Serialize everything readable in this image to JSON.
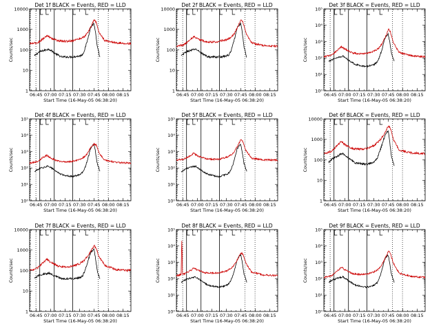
{
  "figure": {
    "x_axis_label": "Start Time (16-May-05 06:38:20)",
    "y_axis_label": "Counts/sec",
    "x_tick_labels": [
      "06:45",
      "07:00",
      "07:15",
      "07:30",
      "07:45",
      "08:00",
      "08:15"
    ],
    "colors": {
      "events": "#000000",
      "lld": "#cc0000",
      "frame": "#000000"
    }
  },
  "chart_data": [
    {
      "type": "line",
      "title": "Det 1f BLACK = Events, RED = LLD",
      "x_unit": "minutes after 06:38:20",
      "xlim": [
        0,
        105
      ],
      "ylim": [
        1,
        10000
      ],
      "ylog": true,
      "y_tick_labels": [
        "1",
        "10",
        "100",
        "1000",
        "10000"
      ],
      "markers": {
        "dotted": [
          0.5,
          6.5,
          71,
          81.5
        ],
        "solid": [
          10.5,
          25.5,
          44.7
        ],
        "flags": [
          11,
          17,
          45,
          58
        ]
      },
      "series": [
        {
          "name": "Events",
          "color": "#000000",
          "x": [
            5,
            10,
            17,
            20,
            28,
            33,
            38,
            44,
            52,
            55,
            57,
            60,
            63,
            66.5,
            68,
            70,
            73
          ],
          "y": [
            50,
            80,
            100,
            110,
            60,
            45,
            45,
            45,
            50,
            60,
            100,
            300,
            1200,
            2000,
            900,
            150,
            40
          ]
        },
        {
          "name": "LLD",
          "color": "#cc0000",
          "x": [
            0,
            8,
            14,
            18,
            22,
            30,
            38,
            44,
            52,
            57,
            60,
            64,
            67,
            69,
            72,
            78,
            90,
            105
          ],
          "y": [
            200,
            220,
            350,
            500,
            380,
            270,
            260,
            280,
            350,
            450,
            650,
            1500,
            3000,
            2200,
            700,
            280,
            220,
            200
          ]
        }
      ]
    },
    {
      "type": "line",
      "title": "Det 2f BLACK = Events, RED = LLD",
      "x_unit": "minutes after 06:38:20",
      "xlim": [
        0,
        105
      ],
      "ylim": [
        1,
        10000
      ],
      "ylog": true,
      "y_tick_labels": [
        "1",
        "10",
        "100",
        "1000",
        "10000"
      ],
      "markers": {
        "dotted": [
          0.5,
          6.5,
          71,
          81.5
        ],
        "solid": [
          10.5,
          25.5,
          44.7
        ],
        "flags": [
          11,
          17,
          45,
          58
        ]
      },
      "series": [
        {
          "name": "Events",
          "color": "#000000",
          "x": [
            5,
            10,
            17,
            20,
            28,
            33,
            38,
            44,
            52,
            55,
            57,
            60,
            63,
            66.5,
            68,
            70,
            73
          ],
          "y": [
            50,
            80,
            100,
            110,
            60,
            45,
            45,
            45,
            50,
            60,
            100,
            300,
            1200,
            2000,
            900,
            150,
            40
          ]
        },
        {
          "name": "LLD",
          "color": "#cc0000",
          "x": [
            0,
            8,
            14,
            18,
            22,
            30,
            38,
            44,
            52,
            57,
            60,
            64,
            67,
            69,
            72,
            78,
            90,
            105
          ],
          "y": [
            150,
            180,
            300,
            450,
            350,
            250,
            240,
            260,
            320,
            420,
            600,
            1400,
            3100,
            2200,
            650,
            220,
            160,
            150
          ]
        }
      ]
    },
    {
      "type": "line",
      "title": "Det 3f BLACK = Events, RED = LLD",
      "x_unit": "minutes after 06:38:20",
      "xlim": [
        0,
        105
      ],
      "ylim": [
        1,
        100000
      ],
      "ylog": true,
      "y_tick_labels": [
        "10⁰",
        "10¹",
        "10²",
        "10³",
        "10⁴",
        "10⁵"
      ],
      "markers": {
        "dotted": [
          0.5,
          6.5,
          71,
          81.5
        ],
        "solid": [
          10.5,
          25.5,
          44.7
        ],
        "flags": [
          11,
          17,
          45,
          58
        ]
      },
      "series": [
        {
          "name": "Events",
          "color": "#000000",
          "x": [
            5,
            10,
            17,
            20,
            28,
            33,
            38,
            44,
            52,
            55,
            57,
            60,
            63,
            66.5,
            68,
            70,
            73
          ],
          "y": [
            60,
            90,
            120,
            130,
            60,
            40,
            35,
            30,
            40,
            55,
            90,
            300,
            1500,
            3000,
            1200,
            200,
            60
          ]
        },
        {
          "name": "LLD",
          "color": "#cc0000",
          "x": [
            0,
            8,
            14,
            18,
            22,
            30,
            38,
            44,
            52,
            57,
            60,
            64,
            67,
            69,
            72,
            78,
            90,
            105
          ],
          "y": [
            120,
            150,
            300,
            500,
            350,
            200,
            180,
            190,
            260,
            400,
            700,
            2000,
            6000,
            4000,
            900,
            220,
            140,
            120
          ]
        }
      ]
    },
    {
      "type": "line",
      "title": "Det 4f BLACK = Events, RED = LLD",
      "x_unit": "minutes after 06:38:20",
      "xlim": [
        0,
        105
      ],
      "ylim": [
        1,
        100000
      ],
      "ylog": true,
      "y_tick_labels": [
        "10⁰",
        "10¹",
        "10²",
        "10³",
        "10⁴",
        "10⁵"
      ],
      "markers": {
        "dotted": [
          0.5,
          6.5,
          71,
          81.5
        ],
        "solid": [
          10.5,
          25.5,
          44.7
        ],
        "flags": [
          11,
          17,
          45,
          58
        ]
      },
      "series": [
        {
          "name": "Events",
          "color": "#000000",
          "x": [
            5,
            10,
            17,
            20,
            28,
            33,
            38,
            44,
            52,
            55,
            57,
            60,
            63,
            66.5,
            68,
            70,
            73
          ],
          "y": [
            60,
            90,
            120,
            130,
            60,
            40,
            35,
            30,
            40,
            55,
            90,
            300,
            1500,
            3000,
            1200,
            200,
            60
          ]
        },
        {
          "name": "LLD",
          "color": "#cc0000",
          "x": [
            0,
            8,
            14,
            18,
            22,
            30,
            38,
            44,
            52,
            57,
            60,
            64,
            67,
            69,
            72,
            78,
            90,
            105
          ],
          "y": [
            200,
            250,
            450,
            600,
            400,
            260,
            240,
            250,
            330,
            500,
            800,
            2000,
            3000,
            2500,
            800,
            300,
            220,
            200
          ]
        }
      ]
    },
    {
      "type": "line",
      "title": "Det 5f BLACK = Events, RED = LLD",
      "x_unit": "minutes after 06:38:20",
      "xlim": [
        0,
        105
      ],
      "ylim": [
        1,
        100000
      ],
      "ylog": true,
      "y_tick_labels": [
        "10⁰",
        "10¹",
        "10²",
        "10³",
        "10⁴",
        "10⁵"
      ],
      "markers": {
        "dotted": [
          0.5,
          6.5,
          71,
          81.5
        ],
        "solid": [
          10.5,
          25.5,
          44.7
        ],
        "flags": [
          11,
          17,
          45,
          58
        ]
      },
      "series": [
        {
          "name": "Events",
          "color": "#000000",
          "x": [
            5,
            10,
            17,
            20,
            28,
            33,
            38,
            44,
            52,
            55,
            57,
            60,
            63,
            66.5,
            68,
            70,
            73
          ],
          "y": [
            60,
            90,
            120,
            130,
            60,
            40,
            35,
            30,
            40,
            55,
            90,
            300,
            1500,
            3000,
            1200,
            200,
            60
          ]
        },
        {
          "name": "LLD",
          "color": "#cc0000",
          "x": [
            0,
            8,
            14,
            18,
            22,
            30,
            38,
            44,
            52,
            57,
            60,
            64,
            67,
            69,
            72,
            78,
            90,
            105
          ],
          "y": [
            300,
            350,
            550,
            800,
            550,
            380,
            340,
            350,
            450,
            650,
            1000,
            2500,
            6000,
            4000,
            1200,
            400,
            320,
            300
          ]
        }
      ]
    },
    {
      "type": "line",
      "title": "Det 6f BLACK = Events, RED = LLD",
      "x_unit": "minutes after 06:38:20",
      "xlim": [
        0,
        105
      ],
      "ylim": [
        1,
        10000
      ],
      "ylog": true,
      "y_tick_labels": [
        "1",
        "10",
        "100",
        "1000",
        "10000"
      ],
      "markers": {
        "dotted": [
          0.5,
          6.5,
          71,
          81.5
        ],
        "solid": [
          10.5,
          25.5,
          44.7
        ],
        "flags": [
          11,
          17,
          45,
          58
        ]
      },
      "series": [
        {
          "name": "Events",
          "color": "#000000",
          "x": [
            5,
            10,
            17,
            20,
            28,
            33,
            38,
            44,
            52,
            55,
            57,
            60,
            63,
            66.5,
            68,
            70,
            73
          ],
          "y": [
            80,
            120,
            180,
            200,
            100,
            70,
            65,
            60,
            80,
            110,
            200,
            500,
            1400,
            2800,
            1000,
            150,
            50
          ]
        },
        {
          "name": "LLD",
          "color": "#cc0000",
          "x": [
            0,
            8,
            14,
            18,
            22,
            30,
            38,
            44,
            52,
            57,
            60,
            64,
            67,
            69,
            72,
            78,
            90,
            105
          ],
          "y": [
            200,
            260,
            500,
            800,
            550,
            350,
            330,
            350,
            500,
            800,
            1200,
            2500,
            4500,
            3500,
            1000,
            300,
            220,
            200
          ]
        }
      ]
    },
    {
      "type": "line",
      "title": "Det 7f BLACK = Events, RED = LLD",
      "x_unit": "minutes after 06:38:20",
      "xlim": [
        0,
        105
      ],
      "ylim": [
        1,
        10000
      ],
      "ylog": true,
      "y_tick_labels": [
        "1",
        "10",
        "100",
        "1000",
        "10000"
      ],
      "markers": {
        "dotted": [
          0.5,
          6.5,
          71,
          81.5
        ],
        "solid": [
          10.5,
          25.5,
          44.7
        ],
        "flags": [
          11,
          17,
          45,
          58
        ]
      },
      "series": [
        {
          "name": "Events",
          "color": "#000000",
          "x": [
            5,
            10,
            17,
            20,
            28,
            33,
            38,
            44,
            52,
            55,
            57,
            60,
            63,
            66.5,
            68,
            70,
            73
          ],
          "y": [
            40,
            60,
            70,
            75,
            50,
            40,
            40,
            40,
            45,
            55,
            90,
            250,
            700,
            1200,
            500,
            100,
            40
          ]
        },
        {
          "name": "LLD",
          "color": "#cc0000",
          "x": [
            0,
            8,
            14,
            18,
            22,
            30,
            38,
            44,
            52,
            57,
            60,
            64,
            67,
            69,
            72,
            78,
            90,
            105
          ],
          "y": [
            100,
            130,
            250,
            350,
            250,
            160,
            150,
            160,
            220,
            330,
            500,
            1000,
            1600,
            1300,
            450,
            180,
            110,
            100
          ]
        }
      ]
    },
    {
      "type": "line",
      "title": "Det 8f BLACK = Events, RED = LLD",
      "x_unit": "minutes after 06:38:20",
      "xlim": [
        0,
        105
      ],
      "ylim": [
        1,
        100000
      ],
      "ylog": true,
      "y_tick_labels": [
        "10⁰",
        "10¹",
        "10²",
        "10³",
        "10⁴",
        "10⁵"
      ],
      "markers": {
        "dotted": [
          0.5,
          6.5,
          71,
          81.5
        ],
        "solid": [
          10.5,
          25.5,
          44.7
        ],
        "flags": [
          11,
          17,
          45,
          58
        ]
      },
      "series": [
        {
          "name": "Events",
          "color": "#000000",
          "x": [
            5,
            10,
            17,
            20,
            28,
            33,
            38,
            44,
            52,
            55,
            57,
            60,
            63,
            66.5,
            68,
            70,
            73
          ],
          "y": [
            60,
            90,
            120,
            130,
            60,
            40,
            35,
            30,
            40,
            55,
            90,
            300,
            1500,
            3000,
            1200,
            200,
            60
          ]
        },
        {
          "name": "LLD",
          "color": "#cc0000",
          "x": [
            0,
            5,
            5.4,
            5.8,
            6.2,
            8,
            14,
            18,
            22,
            30,
            38,
            44,
            52,
            57,
            60,
            64,
            67,
            69,
            72,
            78,
            90,
            105
          ],
          "y": [
            150,
            180,
            20000,
            25000,
            200,
            200,
            300,
            450,
            330,
            230,
            220,
            230,
            300,
            450,
            700,
            1800,
            4000,
            3000,
            900,
            250,
            170,
            150
          ]
        }
      ]
    },
    {
      "type": "line",
      "title": "Det 9f BLACK = Events, RED = LLD",
      "x_unit": "minutes after 06:38:20",
      "xlim": [
        0,
        105
      ],
      "ylim": [
        1,
        100000
      ],
      "ylog": true,
      "y_tick_labels": [
        "10⁰",
        "10¹",
        "10²",
        "10³",
        "10⁴",
        "10⁵"
      ],
      "markers": {
        "dotted": [
          0.5,
          6.5,
          71,
          81.5
        ],
        "solid": [
          10.5,
          25.5,
          44.7
        ],
        "flags": [
          11,
          17,
          45,
          58
        ]
      },
      "series": [
        {
          "name": "Events",
          "color": "#000000",
          "x": [
            5,
            10,
            17,
            20,
            28,
            33,
            38,
            44,
            52,
            55,
            57,
            60,
            63,
            66.5,
            68,
            70,
            73
          ],
          "y": [
            60,
            90,
            120,
            130,
            60,
            40,
            35,
            30,
            40,
            55,
            90,
            300,
            1500,
            3000,
            1200,
            200,
            60
          ]
        },
        {
          "name": "LLD",
          "color": "#cc0000",
          "x": [
            0,
            8,
            14,
            18,
            22,
            30,
            38,
            44,
            52,
            57,
            60,
            64,
            67,
            69,
            72,
            78,
            90,
            105
          ],
          "y": [
            120,
            150,
            300,
            500,
            350,
            200,
            180,
            190,
            260,
            400,
            700,
            2000,
            5000,
            3500,
            900,
            220,
            140,
            120
          ]
        }
      ]
    }
  ]
}
